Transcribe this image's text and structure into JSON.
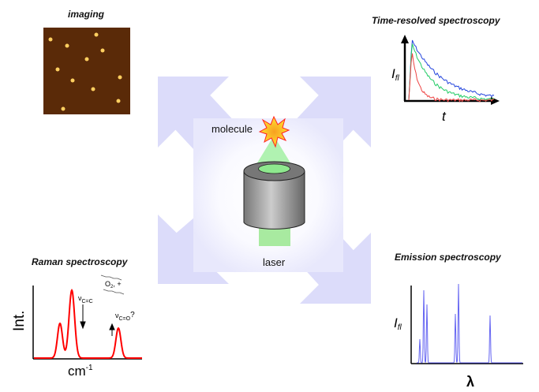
{
  "panels": {
    "imaging": {
      "title": "imaging"
    },
    "time_resolved": {
      "title": "Time-resolved spectroscopy",
      "ylabel": "I",
      "ylabel_sub": "fl",
      "xlabel": "t"
    },
    "raman": {
      "title": "Raman spectroscopy",
      "ylabel": "Int.",
      "xlabel": "cm",
      "xlabel_sup": "-1",
      "annot1": "ν",
      "annot1_sub": "C=C",
      "annot2": "ν",
      "annot2_sub": "C=O",
      "annot2_suffix": "?",
      "reagent": "O",
      "reagent_sub": "2",
      "reagent_suffix": ", +"
    },
    "emission": {
      "title": "Emission spectroscopy",
      "ylabel": "I",
      "ylabel_sub": "fl",
      "xlabel": "λ"
    }
  },
  "center": {
    "molecule_label": "molecule",
    "laser_label": "laser"
  },
  "colors": {
    "arrow": "#dcdcfa",
    "raman_line": "#ff0000",
    "emission_line": "#3333ee",
    "beam": "#8ee88e"
  }
}
